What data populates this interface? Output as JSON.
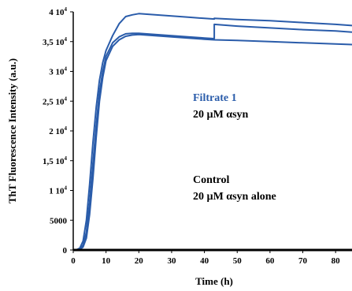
{
  "chart_data": {
    "type": "line",
    "title": "",
    "xlabel": "Time (h)",
    "ylabel": "ThT Fluorescence Intensity (a.u.)",
    "xlim": [
      0,
      85
    ],
    "ylim": [
      0,
      40000
    ],
    "x_ticks": [
      0,
      10,
      20,
      30,
      40,
      50,
      60,
      70,
      80
    ],
    "x_tick_labels": [
      "0",
      "10",
      "20",
      "30",
      "40",
      "50",
      "60",
      "70",
      "80"
    ],
    "y_ticks": [
      {
        "value": 0,
        "mant": "0",
        "exp": ""
      },
      {
        "value": 5000,
        "mant": "5000",
        "exp": ""
      },
      {
        "value": 10000,
        "mant": "1 10",
        "exp": "4"
      },
      {
        "value": 15000,
        "mant": "1,5 10",
        "exp": "4"
      },
      {
        "value": 20000,
        "mant": "2 10",
        "exp": "4"
      },
      {
        "value": 25000,
        "mant": "2,5 10",
        "exp": "4"
      },
      {
        "value": 30000,
        "mant": "3 10",
        "exp": "4"
      },
      {
        "value": 35000,
        "mant": "3,5 10",
        "exp": "4"
      },
      {
        "value": 40000,
        "mant": "4 10",
        "exp": "4"
      }
    ],
    "grid": false,
    "colors": {
      "series": "#2a5caa",
      "control": "#000000",
      "annotation": "#2a5caa"
    },
    "series": [
      {
        "x": [
          0,
          1,
          2,
          3,
          4,
          5,
          6,
          7,
          8,
          9,
          10,
          12,
          14,
          16,
          18,
          20,
          25,
          30,
          35,
          40,
          43,
          43.01,
          50,
          60,
          70,
          80,
          85
        ],
        "y": [
          0,
          50,
          300,
          1500,
          5000,
          11000,
          18000,
          24000,
          28500,
          31500,
          33500,
          36000,
          38000,
          39200,
          39500,
          39700,
          39500,
          39300,
          39100,
          38900,
          38800,
          38900,
          38700,
          38500,
          38200,
          37900,
          37700
        ]
      },
      {
        "x": [
          0,
          1,
          2,
          3,
          4,
          5,
          6,
          7,
          8,
          9,
          10,
          12,
          14,
          16,
          18,
          20,
          25,
          30,
          35,
          40,
          43,
          43.01,
          50,
          60,
          70,
          80,
          85
        ],
        "y": [
          0,
          20,
          150,
          800,
          3000,
          8000,
          14500,
          21000,
          26500,
          30000,
          32500,
          34800,
          35800,
          36300,
          36400,
          36400,
          36200,
          36000,
          35800,
          35600,
          35500,
          37900,
          37600,
          37300,
          37000,
          36800,
          36600
        ]
      },
      {
        "x": [
          0,
          1,
          2,
          3,
          4,
          5,
          6,
          7,
          8,
          9,
          10,
          12,
          14,
          16,
          18,
          20,
          25,
          30,
          35,
          40,
          43,
          50,
          60,
          70,
          80,
          85
        ],
        "y": [
          0,
          10,
          80,
          500,
          2000,
          6000,
          12000,
          19000,
          25000,
          29000,
          31800,
          34200,
          35300,
          35900,
          36100,
          36200,
          36000,
          35800,
          35600,
          35400,
          35300,
          35200,
          35000,
          34800,
          34600,
          34500
        ]
      },
      {
        "x": [
          0,
          85
        ],
        "y": [
          0,
          0
        ]
      }
    ],
    "annotations": [
      {
        "lines": [
          "Filtrate 1",
          "20 µM αsyn"
        ]
      },
      {
        "lines": [
          "Control",
          "20 µM αsyn alone"
        ]
      }
    ]
  }
}
